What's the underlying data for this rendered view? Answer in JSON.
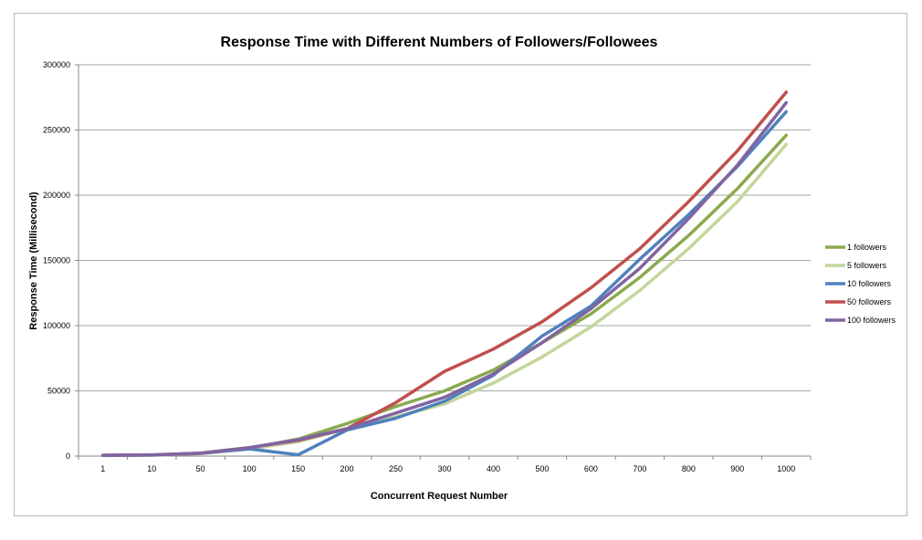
{
  "chart_data": {
    "type": "line",
    "title": "Response Time with Different Numbers of Followers/Followees",
    "xlabel": "Concurrent Request Number",
    "ylabel": "Response Time (Millisecond)",
    "categories": [
      "1",
      "10",
      "50",
      "100",
      "150",
      "200",
      "250",
      "300",
      "400",
      "500",
      "600",
      "700",
      "800",
      "900",
      "1000"
    ],
    "ylim": [
      0,
      300000
    ],
    "yticks": [
      0,
      50000,
      100000,
      150000,
      200000,
      250000,
      300000
    ],
    "grid": "horizontal",
    "legend_position": "right",
    "series": [
      {
        "name": "1 followers",
        "color": "#8aaa4e",
        "values": [
          500,
          800,
          2000,
          6000,
          13000,
          25000,
          38000,
          50000,
          66000,
          87000,
          109000,
          137000,
          169000,
          205000,
          246000
        ]
      },
      {
        "name": "5 followers",
        "color": "#c3d69b",
        "values": [
          400,
          700,
          1800,
          5500,
          11000,
          21000,
          30000,
          40000,
          56000,
          76000,
          99000,
          127000,
          159000,
          195000,
          239000
        ]
      },
      {
        "name": "10 followers",
        "color": "#4f81bd",
        "values": [
          600,
          800,
          2200,
          5500,
          1000,
          20000,
          29000,
          42000,
          62000,
          92000,
          115000,
          151000,
          185000,
          222000,
          264000
        ]
      },
      {
        "name": "50 followers",
        "color": "#c0504d",
        "values": [
          600,
          900,
          2300,
          6500,
          12000,
          21000,
          41000,
          65000,
          82000,
          103000,
          129000,
          159000,
          195000,
          234000,
          279000
        ]
      },
      {
        "name": "100 followers",
        "color": "#8064a2",
        "values": [
          500,
          900,
          2200,
          6500,
          12500,
          21000,
          33000,
          45000,
          63000,
          87000,
          113000,
          144000,
          182000,
          223000,
          271000
        ]
      }
    ]
  }
}
